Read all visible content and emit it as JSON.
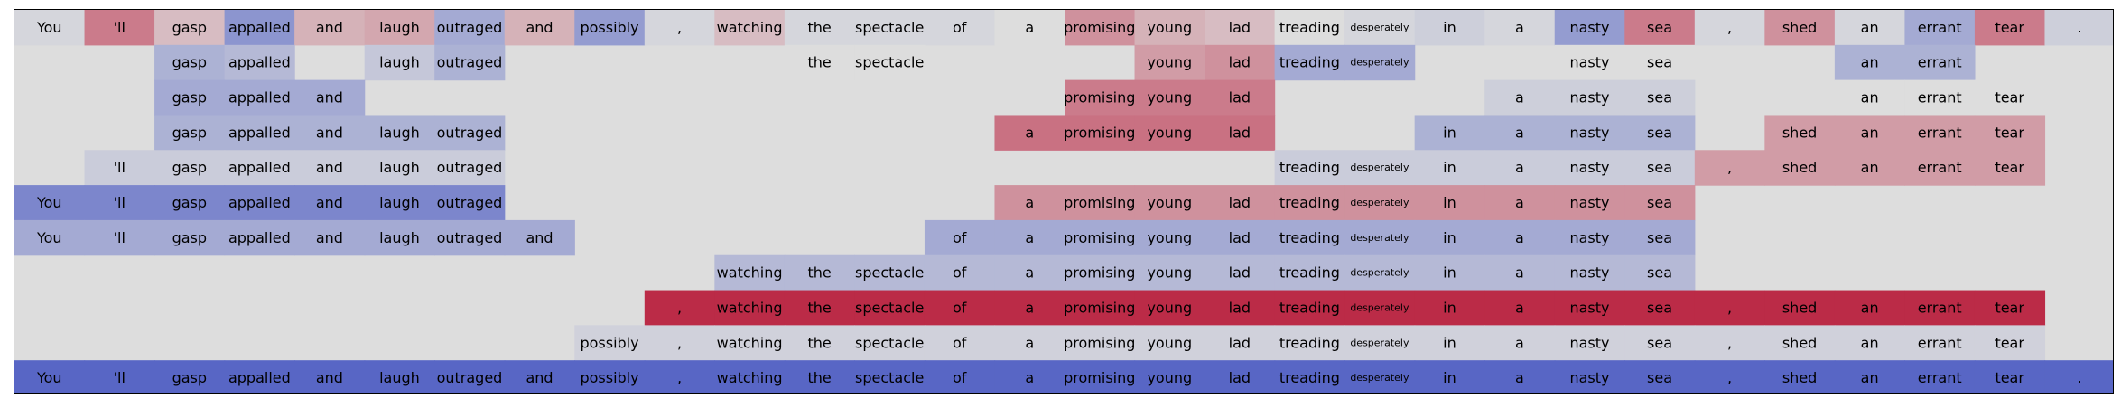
{
  "chart_data": {
    "type": "heatmap",
    "title": "",
    "xlabel": "",
    "ylabel": "",
    "tokens": [
      "You",
      "'ll",
      "gasp",
      "appalled",
      "and",
      "laugh",
      "outraged",
      "and",
      "possibly",
      ",",
      "watching",
      "the",
      "spectacle",
      "of",
      "a",
      "promising",
      "young",
      "lad",
      "treading",
      "desperately",
      "in",
      "a",
      "nasty",
      "sea",
      ",",
      "shed",
      "an",
      "errant",
      "tear",
      "."
    ],
    "scale": {
      "min": -1,
      "max": 1,
      "low_color": "#3b4cc0",
      "mid_color": "#dddddd",
      "high_color": "#b40426"
    },
    "rows": [
      {
        "mask": [
          1,
          1,
          1,
          1,
          1,
          1,
          1,
          1,
          1,
          1,
          1,
          1,
          1,
          1,
          1,
          1,
          1,
          1,
          1,
          1,
          1,
          1,
          1,
          1,
          1,
          1,
          1,
          1,
          1,
          1
        ],
        "values": [
          -0.05,
          0.45,
          0.15,
          -0.5,
          0.2,
          0.25,
          -0.35,
          0.2,
          -0.45,
          -0.05,
          0.15,
          -0.05,
          -0.05,
          -0.05,
          0.0,
          0.35,
          0.2,
          0.15,
          0.0,
          -0.05,
          -0.1,
          -0.05,
          -0.45,
          0.45,
          -0.05,
          0.35,
          -0.05,
          -0.35,
          0.45,
          -0.1
        ]
      },
      {
        "mask": [
          0,
          0,
          1,
          1,
          0,
          1,
          1,
          0,
          0,
          0,
          0,
          1,
          1,
          0,
          0,
          0,
          1,
          1,
          1,
          1,
          0,
          0,
          1,
          1,
          0,
          0,
          1,
          1,
          0,
          0
        ],
        "values": [
          0,
          0,
          -0.3,
          -0.25,
          0,
          -0.15,
          -0.3,
          0,
          0,
          0,
          0,
          0,
          0,
          0,
          0,
          0,
          0.3,
          0.35,
          -0.35,
          -0.35,
          0,
          0,
          0,
          0,
          0,
          0,
          -0.3,
          -0.3,
          0,
          0
        ]
      },
      {
        "mask": [
          0,
          0,
          1,
          1,
          1,
          0,
          0,
          0,
          0,
          0,
          0,
          0,
          0,
          0,
          0,
          1,
          1,
          1,
          0,
          0,
          0,
          1,
          1,
          1,
          0,
          0,
          1,
          1,
          1,
          0
        ],
        "values": [
          0,
          0,
          -0.35,
          -0.35,
          -0.35,
          0,
          0,
          0,
          0,
          0,
          0,
          0,
          0,
          0,
          0,
          0.45,
          0.45,
          0.45,
          0,
          0,
          0,
          -0.1,
          -0.1,
          -0.1,
          0,
          0,
          0,
          0,
          0,
          0
        ]
      },
      {
        "mask": [
          0,
          0,
          1,
          1,
          1,
          1,
          1,
          0,
          0,
          0,
          0,
          0,
          0,
          0,
          1,
          1,
          1,
          1,
          0,
          0,
          1,
          1,
          1,
          1,
          0,
          1,
          1,
          1,
          1,
          0
        ],
        "values": [
          0,
          0,
          -0.3,
          -0.3,
          -0.3,
          -0.3,
          -0.3,
          0,
          0,
          0,
          0,
          0,
          0,
          0,
          0.5,
          0.5,
          0.5,
          0.5,
          0,
          0,
          -0.3,
          -0.3,
          -0.3,
          -0.3,
          0,
          0.3,
          0.3,
          0.3,
          0.3,
          0
        ]
      },
      {
        "mask": [
          0,
          1,
          1,
          1,
          1,
          1,
          1,
          0,
          0,
          0,
          0,
          0,
          0,
          0,
          0,
          0,
          0,
          0,
          1,
          1,
          1,
          1,
          1,
          1,
          1,
          1,
          1,
          1,
          1,
          0
        ],
        "values": [
          0,
          -0.12,
          -0.12,
          -0.12,
          -0.12,
          -0.12,
          -0.12,
          0,
          0,
          0,
          0,
          0,
          0,
          0,
          0,
          0,
          0,
          0,
          -0.12,
          -0.12,
          -0.12,
          -0.12,
          -0.12,
          -0.12,
          0.3,
          0.3,
          0.3,
          0.3,
          0.3,
          0
        ]
      },
      {
        "mask": [
          1,
          1,
          1,
          1,
          1,
          1,
          1,
          0,
          0,
          0,
          0,
          0,
          0,
          0,
          1,
          1,
          1,
          1,
          1,
          1,
          1,
          1,
          1,
          1,
          0,
          0,
          0,
          0,
          0,
          0
        ],
        "values": [
          -0.6,
          -0.6,
          -0.6,
          -0.6,
          -0.6,
          -0.6,
          -0.6,
          0,
          0,
          0,
          0,
          0,
          0,
          0,
          0.35,
          0.35,
          0.35,
          0.35,
          0.35,
          0.35,
          0.35,
          0.35,
          0.35,
          0.35,
          0,
          0,
          0,
          0,
          0,
          0
        ]
      },
      {
        "mask": [
          1,
          1,
          1,
          1,
          1,
          1,
          1,
          1,
          0,
          0,
          0,
          0,
          0,
          1,
          1,
          1,
          1,
          1,
          1,
          1,
          1,
          1,
          1,
          1,
          0,
          0,
          0,
          0,
          0,
          0
        ],
        "values": [
          -0.35,
          -0.35,
          -0.35,
          -0.35,
          -0.35,
          -0.35,
          -0.35,
          -0.35,
          0,
          0,
          0,
          0,
          0,
          -0.35,
          -0.35,
          -0.35,
          -0.35,
          -0.35,
          -0.35,
          -0.35,
          -0.35,
          -0.35,
          -0.35,
          -0.35,
          0,
          0,
          0,
          0,
          0,
          0
        ]
      },
      {
        "mask": [
          0,
          0,
          0,
          0,
          0,
          0,
          0,
          0,
          0,
          0,
          1,
          1,
          1,
          1,
          1,
          1,
          1,
          1,
          1,
          1,
          1,
          1,
          1,
          1,
          0,
          0,
          0,
          0,
          0,
          0
        ],
        "values": [
          0,
          0,
          0,
          0,
          0,
          0,
          0,
          0,
          0,
          0,
          -0.25,
          -0.25,
          -0.25,
          -0.25,
          -0.25,
          -0.25,
          -0.25,
          -0.25,
          -0.25,
          -0.25,
          -0.25,
          -0.25,
          -0.25,
          -0.25,
          0,
          0,
          0,
          0,
          0,
          0
        ]
      },
      {
        "mask": [
          0,
          0,
          0,
          0,
          0,
          0,
          0,
          0,
          0,
          1,
          1,
          1,
          1,
          1,
          1,
          1,
          1,
          1,
          1,
          1,
          1,
          1,
          1,
          1,
          1,
          1,
          1,
          1,
          1,
          0
        ],
        "values": [
          0,
          0,
          0,
          0,
          0,
          0,
          0,
          0,
          0,
          0.82,
          0.82,
          0.82,
          0.82,
          0.82,
          0.82,
          0.82,
          0.82,
          0.82,
          0.82,
          0.82,
          0.82,
          0.82,
          0.82,
          0.82,
          0.82,
          0.82,
          0.82,
          0.82,
          0.82,
          0
        ]
      },
      {
        "mask": [
          0,
          0,
          0,
          0,
          0,
          0,
          0,
          0,
          1,
          1,
          1,
          1,
          1,
          1,
          1,
          1,
          1,
          1,
          1,
          1,
          1,
          1,
          1,
          1,
          1,
          1,
          1,
          1,
          1,
          0
        ],
        "values": [
          0,
          0,
          0,
          0,
          0,
          0,
          0,
          0,
          -0.08,
          -0.08,
          -0.08,
          -0.08,
          -0.08,
          -0.08,
          -0.08,
          -0.08,
          -0.08,
          -0.08,
          -0.08,
          -0.08,
          -0.08,
          -0.08,
          -0.08,
          -0.08,
          -0.08,
          -0.08,
          -0.08,
          -0.08,
          -0.08,
          0
        ]
      },
      {
        "mask": [
          1,
          1,
          1,
          1,
          1,
          1,
          1,
          1,
          1,
          1,
          1,
          1,
          1,
          1,
          1,
          1,
          1,
          1,
          1,
          1,
          1,
          1,
          1,
          1,
          1,
          1,
          1,
          1,
          1,
          1
        ],
        "values": [
          -0.82,
          -0.82,
          -0.82,
          -0.82,
          -0.82,
          -0.82,
          -0.82,
          -0.82,
          -0.82,
          -0.82,
          -0.82,
          -0.82,
          -0.82,
          -0.82,
          -0.82,
          -0.82,
          -0.82,
          -0.82,
          -0.82,
          -0.82,
          -0.82,
          -0.82,
          -0.82,
          -0.82,
          -0.82,
          -0.82,
          -0.82,
          -0.82,
          -0.82,
          -0.82
        ]
      }
    ]
  }
}
